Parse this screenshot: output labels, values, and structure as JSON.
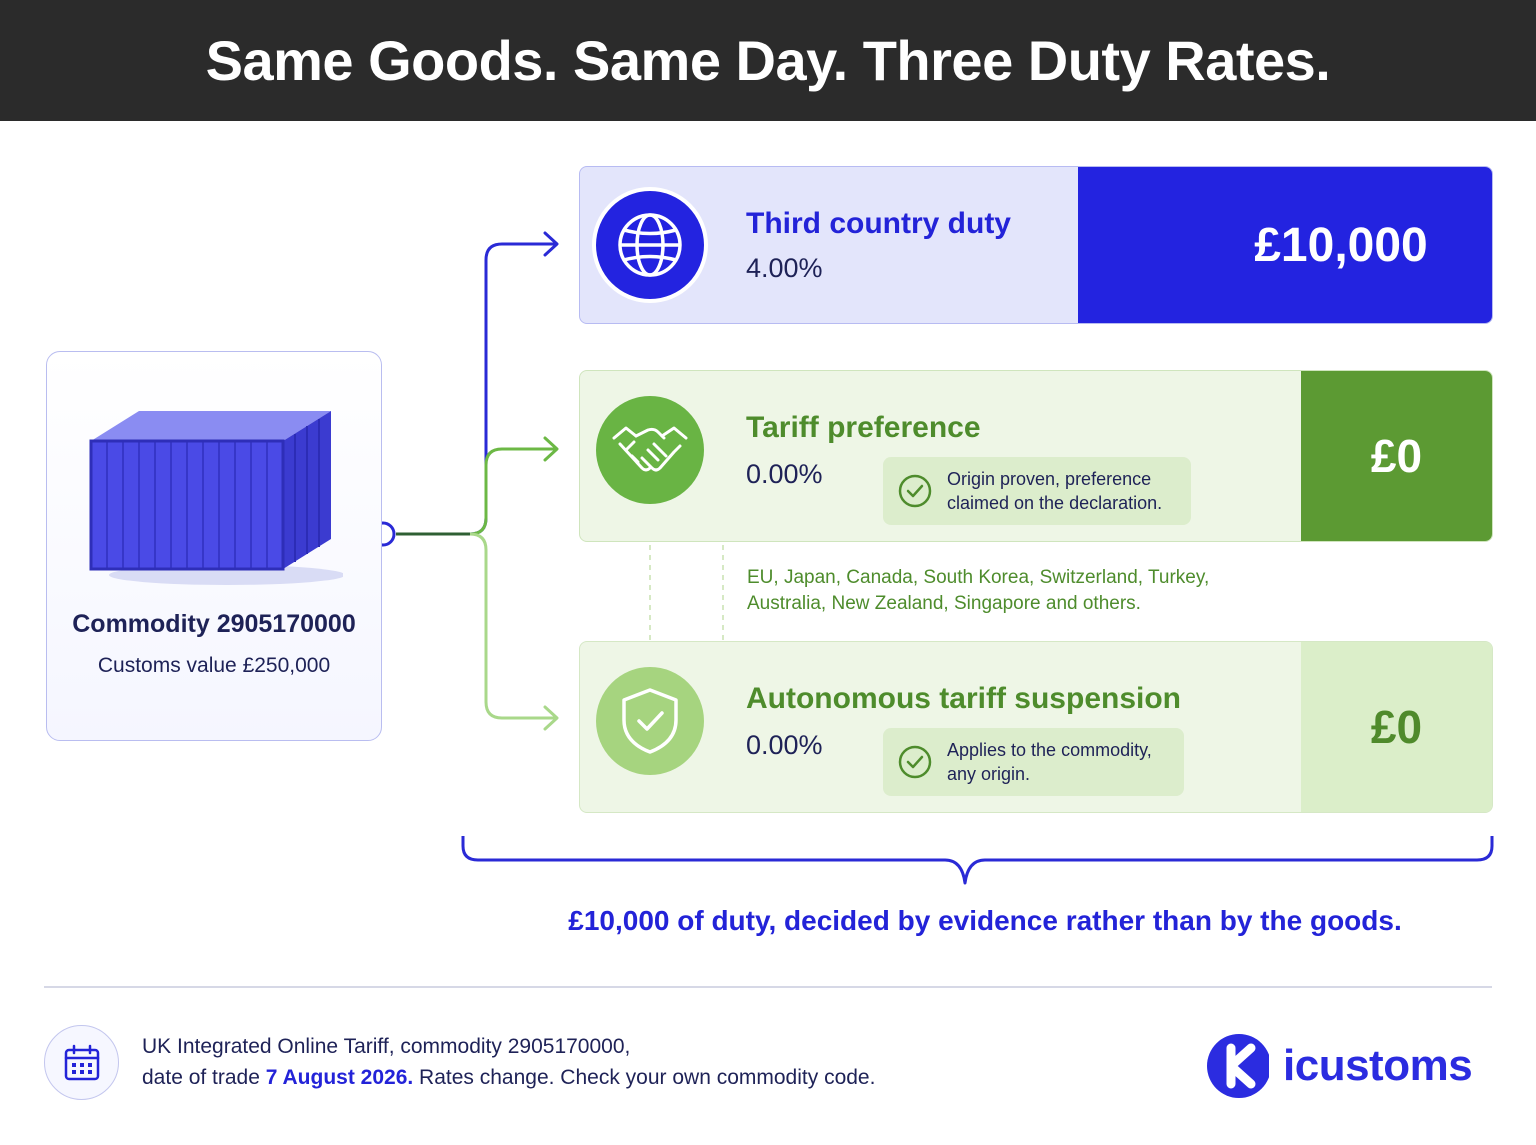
{
  "header": {
    "title": "Same Goods. Same Day. Three Duty Rates."
  },
  "commodity": {
    "code_label": "Commodity 2905170000",
    "customs_value": "Customs value £250,000"
  },
  "rates": [
    {
      "title": "Third country duty",
      "rate": "4.00%",
      "amount": "£10,000",
      "icon": "globe-icon",
      "color": "#2323e0"
    },
    {
      "title": "Tariff preference",
      "rate": "0.00%",
      "amount": "£0",
      "icon": "handshake-icon",
      "note": "Origin proven, preference claimed on the declaration.",
      "color": "#5c9a33"
    },
    {
      "title": "Autonomous tariff suspension",
      "rate": "0.00%",
      "amount": "£0",
      "icon": "shield-check-icon",
      "note": "Applies to the commodity, any origin.",
      "color": "#a6d47f"
    }
  ],
  "preference_countries": "EU, Japan, Canada, South Korea, Switzerland, Turkey, Australia, New Zealand, Singapore and others.",
  "conclusion": "£10,000 of duty, decided by evidence rather than by the goods.",
  "footer": {
    "source_line1": "UK Integrated Online Tariff, commodity 2905170000,",
    "source_prefix": "date of trade ",
    "trade_date": "7 August 2026.",
    "source_suffix": " Rates change. Check your own commodity code.",
    "brand": "icustoms",
    "calendar_icon": "calendar-icon"
  }
}
